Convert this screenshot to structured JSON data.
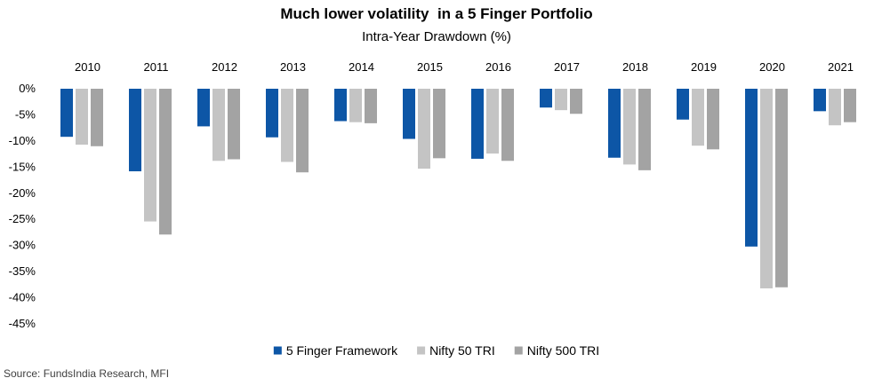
{
  "chart_data": {
    "type": "bar",
    "title": "Much lower volatility  in a 5 Finger Portfolio",
    "subtitle": "Intra-Year Drawdown (%)",
    "xlabel": "",
    "ylabel": "",
    "ylim": [
      -45,
      0
    ],
    "y_ticks": [
      0,
      -5,
      -10,
      -15,
      -20,
      -25,
      -30,
      -35,
      -40,
      -45
    ],
    "y_tick_labels": [
      "0%",
      "-5%",
      "-10%",
      "-15%",
      "-20%",
      "-25%",
      "-30%",
      "-35%",
      "-40%",
      "-45%"
    ],
    "x_axis_position": "top",
    "grid": false,
    "legend_position": "bottom",
    "categories": [
      "2010",
      "2011",
      "2012",
      "2013",
      "2014",
      "2015",
      "2016",
      "2017",
      "2018",
      "2019",
      "2020",
      "2021"
    ],
    "series": [
      {
        "name": "5 Finger Framework",
        "color": "#0D56A6",
        "values": [
          -9.2,
          -15.8,
          -7.2,
          -9.3,
          -6.2,
          -9.6,
          -13.4,
          -3.6,
          -13.2,
          -5.9,
          -30.2,
          -4.3
        ]
      },
      {
        "name": "Nifty 50 TRI",
        "color": "#C4C4C4",
        "values": [
          -10.7,
          -25.4,
          -13.8,
          -14.0,
          -6.4,
          -15.3,
          -12.4,
          -4.1,
          -14.5,
          -10.9,
          -38.2,
          -7.0
        ]
      },
      {
        "name": "Nifty 500 TRI",
        "color": "#A3A3A3",
        "values": [
          -11.0,
          -27.9,
          -13.5,
          -16.0,
          -6.6,
          -13.3,
          -13.8,
          -4.8,
          -15.6,
          -11.6,
          -38.0,
          -6.4
        ]
      }
    ]
  },
  "footer": {
    "source": "Source: FundsIndia Research, MFI"
  }
}
